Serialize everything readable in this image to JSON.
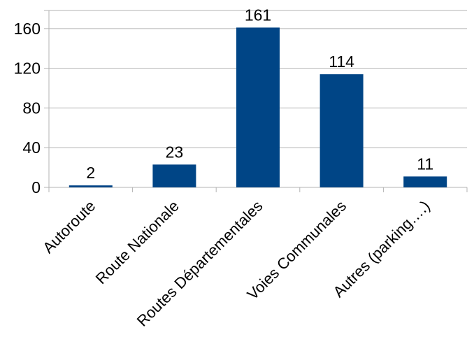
{
  "chart_data": {
    "type": "bar",
    "categories": [
      "Autoroute",
      "Route Nationale",
      "Routes Départementales",
      "Voies Communales",
      "Autres (parking….)"
    ],
    "values": [
      2,
      23,
      161,
      114,
      11
    ],
    "data_labels": [
      "2",
      "23",
      "161",
      "114",
      "11"
    ],
    "title": "",
    "xlabel": "",
    "ylabel": "",
    "ylim": [
      0,
      160
    ],
    "yticks": [
      0,
      40,
      80,
      120,
      160
    ],
    "ytick_labels": [
      "0",
      "40",
      "80",
      "120",
      "160"
    ],
    "grid": true,
    "legend": "none",
    "bar_color": "#004586"
  }
}
